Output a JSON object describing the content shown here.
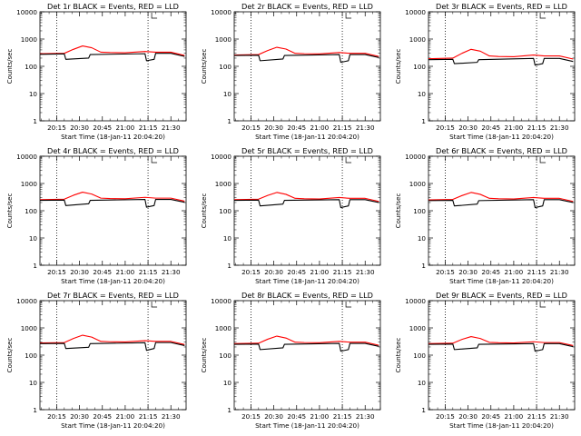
{
  "colors": {
    "events": "#000000",
    "lld": "#ff0000",
    "background": "#ffffff"
  },
  "chart_data": [
    {
      "type": "line",
      "title": "Det 1r BLACK = Events, RED = LLD",
      "xlabel": "Start Time (18-Jan-11 20:04:20)",
      "ylabel": "Counts/sec",
      "yscale": "log",
      "ylim": [
        1,
        10000
      ],
      "y_ticks": [
        "1",
        "10",
        "100",
        "1000",
        "10000"
      ],
      "x_ticks": [
        "20:15",
        "20:30",
        "20:45",
        "21:00",
        "21:15",
        "21:30"
      ],
      "xlim_minutes": [
        "20:04",
        "21:40"
      ],
      "marker_lines": [
        "20:15",
        "21:15"
      ],
      "grid": false,
      "legend": "title",
      "series": [
        {
          "name": "LLD",
          "color": "#ff0000",
          "x": [
            "20:04",
            "20:20",
            "20:26",
            "20:32",
            "20:38",
            "20:44",
            "20:50",
            "21:00",
            "21:13",
            "21:20",
            "21:30",
            "21:39"
          ],
          "y": [
            290,
            300,
            420,
            560,
            480,
            330,
            320,
            315,
            350,
            330,
            330,
            250
          ]
        },
        {
          "name": "Events",
          "color": "#000000",
          "x": [
            "20:04",
            "20:20",
            "20:21",
            "20:36",
            "20:37",
            "21:13",
            "21:14",
            "21:19",
            "21:20",
            "21:30",
            "21:39"
          ],
          "y": [
            275,
            285,
            180,
            200,
            270,
            290,
            160,
            180,
            300,
            300,
            230
          ]
        }
      ]
    },
    {
      "type": "line",
      "title": "Det 2r BLACK = Events, RED = LLD",
      "xlabel": "Start Time (18-Jan-11 20:04:20)",
      "ylabel": "Counts/sec",
      "yscale": "log",
      "ylim": [
        1,
        10000
      ],
      "y_ticks": [
        "1",
        "10",
        "100",
        "1000",
        "10000"
      ],
      "x_ticks": [
        "20:15",
        "20:30",
        "20:45",
        "21:00",
        "21:15",
        "21:30"
      ],
      "xlim_minutes": [
        "20:04",
        "21:40"
      ],
      "marker_lines": [
        "20:15",
        "21:15"
      ],
      "grid": false,
      "legend": "title",
      "series": [
        {
          "name": "LLD",
          "color": "#ff0000",
          "x": [
            "20:04",
            "20:20",
            "20:26",
            "20:32",
            "20:38",
            "20:44",
            "20:50",
            "21:00",
            "21:13",
            "21:20",
            "21:30",
            "21:39"
          ],
          "y": [
            260,
            270,
            380,
            500,
            430,
            300,
            290,
            285,
            320,
            300,
            300,
            230
          ]
        },
        {
          "name": "Events",
          "color": "#000000",
          "x": [
            "20:04",
            "20:20",
            "20:21",
            "20:36",
            "20:37",
            "21:13",
            "21:14",
            "21:19",
            "21:20",
            "21:30",
            "21:39"
          ],
          "y": [
            250,
            255,
            160,
            185,
            250,
            270,
            140,
            160,
            270,
            270,
            210
          ]
        }
      ]
    },
    {
      "type": "line",
      "title": "Det 3r BLACK = Events, RED = LLD",
      "xlabel": "Start Time (18-Jan-11 20:04:20)",
      "ylabel": "Counts/sec",
      "yscale": "log",
      "ylim": [
        1,
        10000
      ],
      "y_ticks": [
        "1",
        "10",
        "100",
        "1000",
        "10000"
      ],
      "x_ticks": [
        "20:15",
        "20:30",
        "20:45",
        "21:00",
        "21:15",
        "21:30"
      ],
      "xlim_minutes": [
        "20:04",
        "21:40"
      ],
      "marker_lines": [
        "20:15",
        "21:15"
      ],
      "grid": false,
      "legend": "title",
      "series": [
        {
          "name": "LLD",
          "color": "#ff0000",
          "x": [
            "20:04",
            "20:20",
            "20:26",
            "20:32",
            "20:38",
            "20:44",
            "20:50",
            "21:00",
            "21:13",
            "21:20",
            "21:30",
            "21:39"
          ],
          "y": [
            190,
            200,
            300,
            420,
            360,
            240,
            230,
            225,
            260,
            240,
            240,
            185
          ]
        },
        {
          "name": "Events",
          "color": "#000000",
          "x": [
            "20:04",
            "20:20",
            "20:21",
            "20:36",
            "20:37",
            "21:13",
            "21:14",
            "21:19",
            "21:20",
            "21:30",
            "21:39"
          ],
          "y": [
            175,
            180,
            125,
            140,
            175,
            195,
            110,
            125,
            195,
            195,
            150
          ]
        }
      ]
    },
    {
      "type": "line",
      "title": "Det 4r BLACK = Events, RED = LLD",
      "xlabel": "Start Time (18-Jan-11 20:04:20)",
      "ylabel": "Counts/sec",
      "yscale": "log",
      "ylim": [
        1,
        10000
      ],
      "y_ticks": [
        "1",
        "10",
        "100",
        "1000",
        "10000"
      ],
      "x_ticks": [
        "20:15",
        "20:30",
        "20:45",
        "21:00",
        "21:15",
        "21:30"
      ],
      "xlim_minutes": [
        "20:04",
        "21:40"
      ],
      "marker_lines": [
        "20:15",
        "21:15"
      ],
      "grid": false,
      "legend": "title",
      "series": [
        {
          "name": "LLD",
          "color": "#ff0000",
          "x": [
            "20:04",
            "20:20",
            "20:26",
            "20:32",
            "20:38",
            "20:44",
            "20:50",
            "21:00",
            "21:13",
            "21:20",
            "21:30",
            "21:39"
          ],
          "y": [
            255,
            265,
            370,
            480,
            410,
            290,
            280,
            275,
            310,
            290,
            290,
            225
          ]
        },
        {
          "name": "Events",
          "color": "#000000",
          "x": [
            "20:04",
            "20:20",
            "20:21",
            "20:36",
            "20:37",
            "21:13",
            "21:14",
            "21:19",
            "21:20",
            "21:30",
            "21:39"
          ],
          "y": [
            240,
            245,
            155,
            180,
            240,
            260,
            135,
            155,
            260,
            260,
            205
          ]
        }
      ]
    },
    {
      "type": "line",
      "title": "Det 5r BLACK = Events, RED = LLD",
      "xlabel": "Start Time (18-Jan-11 20:04:20)",
      "ylabel": "Counts/sec",
      "yscale": "log",
      "ylim": [
        1,
        10000
      ],
      "y_ticks": [
        "1",
        "10",
        "100",
        "1000",
        "10000"
      ],
      "x_ticks": [
        "20:15",
        "20:30",
        "20:45",
        "21:00",
        "21:15",
        "21:30"
      ],
      "xlim_minutes": [
        "20:04",
        "21:40"
      ],
      "marker_lines": [
        "20:15",
        "21:15"
      ],
      "grid": false,
      "legend": "title",
      "series": [
        {
          "name": "LLD",
          "color": "#ff0000",
          "x": [
            "20:04",
            "20:20",
            "20:26",
            "20:32",
            "20:38",
            "20:44",
            "20:50",
            "21:00",
            "21:13",
            "21:20",
            "21:30",
            "21:39"
          ],
          "y": [
            255,
            265,
            365,
            470,
            400,
            285,
            275,
            270,
            305,
            285,
            285,
            220
          ]
        },
        {
          "name": "Events",
          "color": "#000000",
          "x": [
            "20:04",
            "20:20",
            "20:21",
            "20:36",
            "20:37",
            "21:13",
            "21:14",
            "21:19",
            "21:20",
            "21:30",
            "21:39"
          ],
          "y": [
            240,
            245,
            150,
            175,
            240,
            255,
            130,
            150,
            255,
            255,
            200
          ]
        }
      ]
    },
    {
      "type": "line",
      "title": "Det 6r BLACK = Events, RED = LLD",
      "xlabel": "Start Time (18-Jan-11 20:04:20)",
      "ylabel": "Counts/sec",
      "yscale": "log",
      "ylim": [
        1,
        10000
      ],
      "y_ticks": [
        "1",
        "10",
        "100",
        "1000",
        "10000"
      ],
      "x_ticks": [
        "20:15",
        "20:30",
        "20:45",
        "21:00",
        "21:15",
        "21:30"
      ],
      "xlim_minutes": [
        "20:04",
        "21:40"
      ],
      "marker_lines": [
        "20:15",
        "21:15"
      ],
      "grid": false,
      "legend": "title",
      "series": [
        {
          "name": "LLD",
          "color": "#ff0000",
          "x": [
            "20:04",
            "20:20",
            "20:26",
            "20:32",
            "20:38",
            "20:44",
            "20:50",
            "21:00",
            "21:13",
            "21:20",
            "21:30",
            "21:39"
          ],
          "y": [
            250,
            260,
            360,
            470,
            400,
            285,
            275,
            270,
            305,
            285,
            285,
            220
          ]
        },
        {
          "name": "Events",
          "color": "#000000",
          "x": [
            "20:04",
            "20:20",
            "20:21",
            "20:36",
            "20:37",
            "21:13",
            "21:14",
            "21:19",
            "21:20",
            "21:30",
            "21:39"
          ],
          "y": [
            235,
            240,
            150,
            175,
            235,
            255,
            130,
            150,
            255,
            255,
            200
          ]
        }
      ]
    },
    {
      "type": "line",
      "title": "Det 7r BLACK = Events, RED = LLD",
      "xlabel": "Start Time (18-Jan-11 20:04:20)",
      "ylabel": "Counts/sec",
      "yscale": "log",
      "ylim": [
        1,
        10000
      ],
      "y_ticks": [
        "1",
        "10",
        "100",
        "1000",
        "10000"
      ],
      "x_ticks": [
        "20:15",
        "20:30",
        "20:45",
        "21:00",
        "21:15",
        "21:30"
      ],
      "xlim_minutes": [
        "20:04",
        "21:40"
      ],
      "marker_lines": [
        "20:15",
        "21:15"
      ],
      "grid": false,
      "legend": "title",
      "series": [
        {
          "name": "LLD",
          "color": "#ff0000",
          "x": [
            "20:04",
            "20:20",
            "20:26",
            "20:32",
            "20:38",
            "20:44",
            "20:50",
            "21:00",
            "21:13",
            "21:20",
            "21:30",
            "21:39"
          ],
          "y": [
            280,
            290,
            410,
            540,
            460,
            320,
            310,
            305,
            340,
            320,
            320,
            245
          ]
        },
        {
          "name": "Events",
          "color": "#000000",
          "x": [
            "20:04",
            "20:20",
            "20:21",
            "20:36",
            "20:37",
            "21:13",
            "21:14",
            "21:19",
            "21:20",
            "21:30",
            "21:39"
          ],
          "y": [
            265,
            270,
            175,
            195,
            265,
            285,
            150,
            175,
            290,
            290,
            225
          ]
        }
      ]
    },
    {
      "type": "line",
      "title": "Det 8r BLACK = Events, RED = LLD",
      "xlabel": "Start Time (18-Jan-11 20:04:20)",
      "ylabel": "Counts/sec",
      "yscale": "log",
      "ylim": [
        1,
        10000
      ],
      "y_ticks": [
        "1",
        "10",
        "100",
        "1000",
        "10000"
      ],
      "x_ticks": [
        "20:15",
        "20:30",
        "20:45",
        "21:00",
        "21:15",
        "21:30"
      ],
      "xlim_minutes": [
        "20:04",
        "21:40"
      ],
      "marker_lines": [
        "20:15",
        "21:15"
      ],
      "grid": false,
      "legend": "title",
      "series": [
        {
          "name": "LLD",
          "color": "#ff0000",
          "x": [
            "20:04",
            "20:20",
            "20:26",
            "20:32",
            "20:38",
            "20:44",
            "20:50",
            "21:00",
            "21:13",
            "21:20",
            "21:30",
            "21:39"
          ],
          "y": [
            265,
            275,
            385,
            500,
            425,
            300,
            290,
            285,
            320,
            300,
            300,
            230
          ]
        },
        {
          "name": "Events",
          "color": "#000000",
          "x": [
            "20:04",
            "20:20",
            "20:21",
            "20:36",
            "20:37",
            "21:13",
            "21:14",
            "21:19",
            "21:20",
            "21:30",
            "21:39"
          ],
          "y": [
            250,
            255,
            160,
            185,
            250,
            270,
            140,
            160,
            270,
            270,
            210
          ]
        }
      ]
    },
    {
      "type": "line",
      "title": "Det 9r BLACK = Events, RED = LLD",
      "xlabel": "Start Time (18-Jan-11 20:04:20)",
      "ylabel": "Counts/sec",
      "yscale": "log",
      "ylim": [
        1,
        10000
      ],
      "y_ticks": [
        "1",
        "10",
        "100",
        "1000",
        "10000"
      ],
      "x_ticks": [
        "20:15",
        "20:30",
        "20:45",
        "21:00",
        "21:15",
        "21:30"
      ],
      "xlim_minutes": [
        "20:04",
        "21:40"
      ],
      "marker_lines": [
        "20:15",
        "21:15"
      ],
      "grid": false,
      "legend": "title",
      "series": [
        {
          "name": "LLD",
          "color": "#ff0000",
          "x": [
            "20:04",
            "20:20",
            "20:26",
            "20:32",
            "20:38",
            "20:44",
            "20:50",
            "21:00",
            "21:13",
            "21:20",
            "21:30",
            "21:39"
          ],
          "y": [
            265,
            275,
            380,
            480,
            410,
            295,
            285,
            280,
            310,
            290,
            290,
            225
          ]
        },
        {
          "name": "Events",
          "color": "#000000",
          "x": [
            "20:04",
            "20:20",
            "20:21",
            "20:36",
            "20:37",
            "21:13",
            "21:14",
            "21:19",
            "21:20",
            "21:30",
            "21:39"
          ],
          "y": [
            250,
            255,
            160,
            185,
            250,
            265,
            140,
            160,
            265,
            265,
            205
          ]
        }
      ]
    }
  ]
}
